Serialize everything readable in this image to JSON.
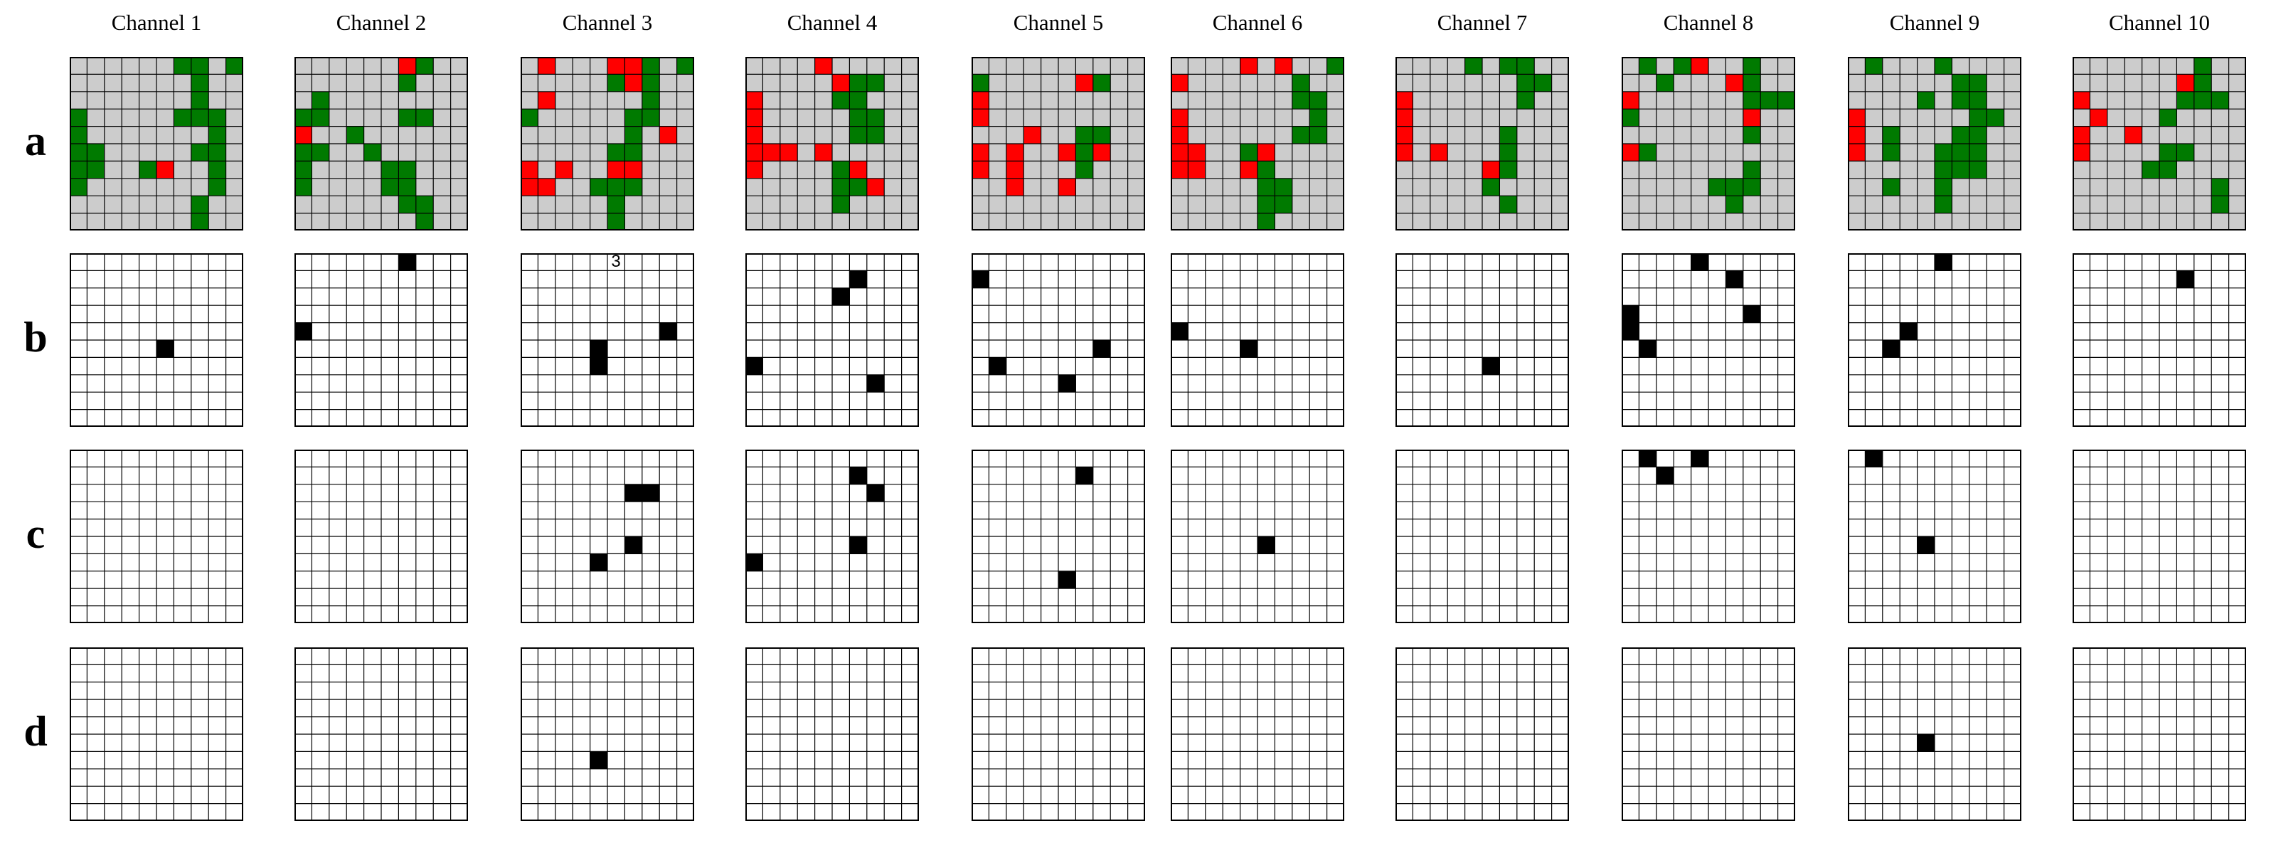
{
  "colors": {
    "gray": "#cccccc",
    "red": "#ff0000",
    "green": "#007a00",
    "black": "#000000",
    "white": "#ffffff",
    "grid": "#000000"
  },
  "grid_size": 10,
  "channels": [
    "Channel 1",
    "Channel 2",
    "Channel 3",
    "Channel 4",
    "Channel 5",
    "Channel 6",
    "Channel 7",
    "Channel 8",
    "Channel 9",
    "Channel 10"
  ],
  "rows": [
    {
      "label": "a",
      "type": "state"
    },
    {
      "label": "b",
      "type": "binary"
    },
    {
      "label": "c",
      "type": "binary"
    },
    {
      "label": "d",
      "type": "binary"
    }
  ],
  "annotations": [
    {
      "row": 1,
      "channel": 2,
      "col": 5,
      "r": 0,
      "text": "3"
    }
  ],
  "panels": {
    "a": [
      {
        "red": [
          [
            6,
            5
          ]
        ],
        "green": [
          [
            0,
            6
          ],
          [
            0,
            7
          ],
          [
            0,
            9
          ],
          [
            1,
            7
          ],
          [
            2,
            7
          ],
          [
            3,
            6
          ],
          [
            3,
            7
          ],
          [
            3,
            8
          ],
          [
            3,
            0
          ],
          [
            4,
            0
          ],
          [
            4,
            8
          ],
          [
            5,
            0
          ],
          [
            5,
            1
          ],
          [
            5,
            7
          ],
          [
            5,
            8
          ],
          [
            6,
            0
          ],
          [
            6,
            1
          ],
          [
            6,
            4
          ],
          [
            6,
            5
          ],
          [
            6,
            8
          ],
          [
            7,
            0
          ],
          [
            7,
            8
          ],
          [
            8,
            7
          ],
          [
            9,
            7
          ]
        ]
      },
      {
        "red": [
          [
            0,
            6
          ],
          [
            4,
            0
          ]
        ],
        "green": [
          [
            0,
            7
          ],
          [
            1,
            6
          ],
          [
            2,
            1
          ],
          [
            3,
            0
          ],
          [
            3,
            1
          ],
          [
            3,
            6
          ],
          [
            3,
            7
          ],
          [
            4,
            3
          ],
          [
            5,
            0
          ],
          [
            5,
            1
          ],
          [
            5,
            4
          ],
          [
            6,
            0
          ],
          [
            6,
            5
          ],
          [
            6,
            6
          ],
          [
            7,
            0
          ],
          [
            7,
            5
          ],
          [
            7,
            6
          ],
          [
            8,
            6
          ],
          [
            8,
            7
          ],
          [
            9,
            7
          ]
        ]
      },
      {
        "red": [
          [
            0,
            1
          ],
          [
            0,
            5
          ],
          [
            0,
            6
          ],
          [
            1,
            6
          ],
          [
            2,
            1
          ],
          [
            4,
            8
          ],
          [
            6,
            0
          ],
          [
            6,
            2
          ],
          [
            6,
            5
          ],
          [
            6,
            6
          ],
          [
            7,
            0
          ],
          [
            7,
            1
          ]
        ],
        "green": [
          [
            0,
            7
          ],
          [
            0,
            9
          ],
          [
            1,
            5
          ],
          [
            1,
            7
          ],
          [
            2,
            7
          ],
          [
            3,
            0
          ],
          [
            3,
            6
          ],
          [
            3,
            7
          ],
          [
            4,
            6
          ],
          [
            5,
            5
          ],
          [
            5,
            6
          ],
          [
            6,
            5
          ],
          [
            7,
            4
          ],
          [
            7,
            5
          ],
          [
            7,
            6
          ],
          [
            8,
            5
          ],
          [
            9,
            5
          ]
        ]
      },
      {
        "red": [
          [
            0,
            4
          ],
          [
            1,
            5
          ],
          [
            2,
            0
          ],
          [
            3,
            0
          ],
          [
            4,
            0
          ],
          [
            5,
            0
          ],
          [
            5,
            1
          ],
          [
            5,
            2
          ],
          [
            5,
            4
          ],
          [
            6,
            0
          ],
          [
            6,
            6
          ],
          [
            7,
            7
          ]
        ],
        "green": [
          [
            1,
            6
          ],
          [
            1,
            7
          ],
          [
            2,
            5
          ],
          [
            2,
            6
          ],
          [
            3,
            6
          ],
          [
            3,
            7
          ],
          [
            4,
            6
          ],
          [
            4,
            7
          ],
          [
            6,
            0
          ],
          [
            6,
            5
          ],
          [
            7,
            5
          ],
          [
            7,
            6
          ],
          [
            8,
            5
          ]
        ]
      },
      {
        "red": [
          [
            1,
            6
          ],
          [
            2,
            0
          ],
          [
            3,
            0
          ],
          [
            4,
            3
          ],
          [
            5,
            0
          ],
          [
            5,
            2
          ],
          [
            5,
            5
          ],
          [
            5,
            7
          ],
          [
            6,
            0
          ],
          [
            6,
            2
          ],
          [
            7,
            2
          ],
          [
            7,
            5
          ]
        ],
        "green": [
          [
            1,
            0
          ],
          [
            1,
            7
          ],
          [
            4,
            6
          ],
          [
            4,
            7
          ],
          [
            5,
            6
          ],
          [
            6,
            6
          ]
        ]
      },
      {
        "red": [
          [
            0,
            4
          ],
          [
            0,
            6
          ],
          [
            1,
            0
          ],
          [
            3,
            0
          ],
          [
            4,
            0
          ],
          [
            5,
            0
          ],
          [
            5,
            1
          ],
          [
            5,
            5
          ],
          [
            6,
            0
          ],
          [
            6,
            1
          ],
          [
            6,
            4
          ]
        ],
        "green": [
          [
            0,
            9
          ],
          [
            1,
            7
          ],
          [
            2,
            7
          ],
          [
            2,
            8
          ],
          [
            3,
            8
          ],
          [
            4,
            7
          ],
          [
            4,
            8
          ],
          [
            5,
            4
          ],
          [
            6,
            5
          ],
          [
            7,
            5
          ],
          [
            7,
            6
          ],
          [
            8,
            5
          ],
          [
            8,
            6
          ],
          [
            9,
            5
          ]
        ]
      },
      {
        "red": [
          [
            2,
            0
          ],
          [
            3,
            0
          ],
          [
            4,
            0
          ],
          [
            5,
            0
          ],
          [
            5,
            2
          ],
          [
            6,
            5
          ]
        ],
        "green": [
          [
            0,
            4
          ],
          [
            0,
            6
          ],
          [
            0,
            7
          ],
          [
            1,
            7
          ],
          [
            1,
            8
          ],
          [
            2,
            7
          ],
          [
            4,
            6
          ],
          [
            5,
            6
          ],
          [
            6,
            6
          ],
          [
            7,
            5
          ],
          [
            8,
            6
          ]
        ]
      },
      {
        "red": [
          [
            0,
            4
          ],
          [
            1,
            6
          ],
          [
            2,
            0
          ],
          [
            3,
            7
          ],
          [
            5,
            0
          ]
        ],
        "green": [
          [
            0,
            1
          ],
          [
            0,
            3
          ],
          [
            0,
            7
          ],
          [
            1,
            2
          ],
          [
            1,
            7
          ],
          [
            2,
            7
          ],
          [
            2,
            8
          ],
          [
            2,
            9
          ],
          [
            3,
            0
          ],
          [
            3,
            7
          ],
          [
            4,
            7
          ],
          [
            5,
            1
          ],
          [
            6,
            7
          ],
          [
            7,
            5
          ],
          [
            7,
            6
          ],
          [
            7,
            7
          ],
          [
            8,
            6
          ]
        ]
      },
      {
        "red": [
          [
            3,
            0
          ],
          [
            4,
            0
          ],
          [
            5,
            0
          ]
        ],
        "green": [
          [
            0,
            1
          ],
          [
            0,
            5
          ],
          [
            1,
            6
          ],
          [
            1,
            7
          ],
          [
            2,
            4
          ],
          [
            2,
            6
          ],
          [
            2,
            7
          ],
          [
            3,
            7
          ],
          [
            3,
            8
          ],
          [
            4,
            2
          ],
          [
            4,
            6
          ],
          [
            4,
            7
          ],
          [
            5,
            2
          ],
          [
            5,
            5
          ],
          [
            5,
            6
          ],
          [
            5,
            7
          ],
          [
            6,
            5
          ],
          [
            6,
            6
          ],
          [
            6,
            7
          ],
          [
            7,
            2
          ],
          [
            7,
            5
          ],
          [
            8,
            5
          ]
        ]
      },
      {
        "red": [
          [
            1,
            6
          ],
          [
            2,
            0
          ],
          [
            3,
            1
          ],
          [
            4,
            0
          ],
          [
            4,
            3
          ],
          [
            5,
            0
          ]
        ],
        "green": [
          [
            0,
            7
          ],
          [
            1,
            7
          ],
          [
            2,
            6
          ],
          [
            2,
            7
          ],
          [
            2,
            8
          ],
          [
            3,
            5
          ],
          [
            4,
            3
          ],
          [
            5,
            6
          ],
          [
            5,
            5
          ],
          [
            6,
            4
          ],
          [
            6,
            5
          ],
          [
            7,
            8
          ],
          [
            8,
            8
          ]
        ]
      }
    ],
    "b": [
      [
        [
          5,
          5
        ]
      ],
      [
        [
          0,
          6
        ],
        [
          4,
          0
        ]
      ],
      [
        [
          5,
          4
        ],
        [
          4,
          8
        ],
        [
          6,
          4
        ]
      ],
      [
        [
          1,
          6
        ],
        [
          2,
          5
        ],
        [
          6,
          0
        ],
        [
          7,
          7
        ]
      ],
      [
        [
          1,
          0
        ],
        [
          5,
          7
        ],
        [
          6,
          1
        ],
        [
          7,
          5
        ]
      ],
      [
        [
          4,
          0
        ],
        [
          5,
          4
        ]
      ],
      [
        [
          6,
          5
        ]
      ],
      [
        [
          0,
          4
        ],
        [
          1,
          6
        ],
        [
          3,
          7
        ],
        [
          3,
          0
        ],
        [
          4,
          0
        ],
        [
          5,
          1
        ]
      ],
      [
        [
          0,
          5
        ],
        [
          4,
          3
        ],
        [
          5,
          2
        ]
      ],
      [
        [
          1,
          6
        ]
      ]
    ],
    "c": [
      [],
      [],
      [
        [
          2,
          6
        ],
        [
          2,
          7
        ],
        [
          5,
          6
        ],
        [
          6,
          4
        ]
      ],
      [
        [
          1,
          6
        ],
        [
          2,
          7
        ],
        [
          5,
          6
        ],
        [
          6,
          0
        ]
      ],
      [
        [
          1,
          6
        ],
        [
          7,
          5
        ]
      ],
      [
        [
          5,
          5
        ]
      ],
      [],
      [
        [
          0,
          1
        ],
        [
          1,
          2
        ],
        [
          0,
          4
        ]
      ],
      [
        [
          0,
          1
        ],
        [
          5,
          4
        ]
      ],
      []
    ],
    "d": [
      [],
      [],
      [
        [
          6,
          4
        ]
      ],
      [],
      [],
      [],
      [],
      [],
      [
        [
          5,
          4
        ]
      ],
      []
    ]
  }
}
